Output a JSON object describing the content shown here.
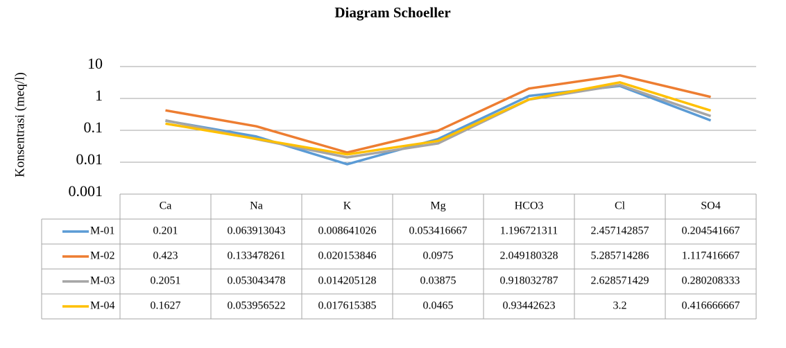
{
  "chart_data": {
    "type": "line",
    "title": "Diagram Schoeller",
    "y_label": "Konsentrasi (meq/l)",
    "log_scale": true,
    "grid": true,
    "categories": [
      "Ca",
      "Na",
      "K",
      "Mg",
      "HCO3",
      "Cl",
      "SO4"
    ],
    "ylim": [
      0.001,
      10
    ],
    "yticks": [
      0.001,
      0.01,
      0.1,
      1,
      10
    ],
    "series": [
      {
        "name": "M-01",
        "color": "#5b9bd5",
        "values": [
          0.201,
          0.063913043,
          0.008641026,
          0.053416667,
          1.196721311,
          2.457142857,
          0.204541667
        ]
      },
      {
        "name": "M-02",
        "color": "#ed7d31",
        "values": [
          0.423,
          0.133478261,
          0.020153846,
          0.0975,
          2.049180328,
          5.285714286,
          1.117416667
        ]
      },
      {
        "name": "M-03",
        "color": "#a5a5a5",
        "values": [
          0.2051,
          0.053043478,
          0.014205128,
          0.03875,
          0.918032787,
          2.628571429,
          0.280208333
        ]
      },
      {
        "name": "M-04",
        "color": "#ffc000",
        "values": [
          0.1627,
          0.053956522,
          0.017615385,
          0.0465,
          0.93442623,
          3.2,
          0.416666667
        ]
      }
    ]
  }
}
